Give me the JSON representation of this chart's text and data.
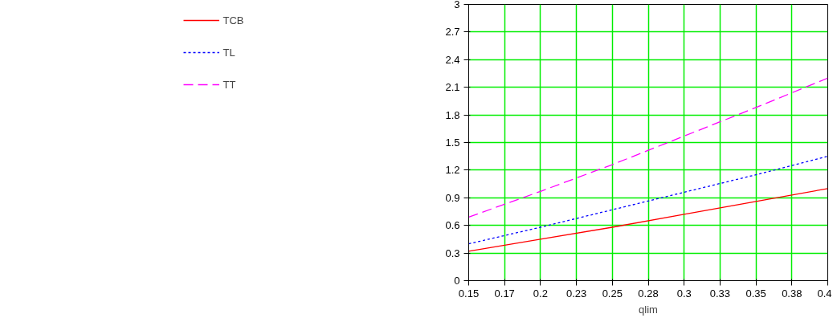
{
  "chart_data": {
    "type": "line",
    "xlabel": "qlim",
    "x": [
      0.15,
      0.2,
      0.25,
      0.3,
      0.35,
      0.4
    ],
    "series": [
      {
        "name": "TCB",
        "color": "#ff0000",
        "line_style": "solid",
        "values": [
          0.32,
          0.45,
          0.58,
          0.72,
          0.86,
          1.0
        ]
      },
      {
        "name": "TL",
        "color": "#0000ff",
        "line_style": "dotted",
        "values": [
          0.4,
          0.58,
          0.77,
          0.96,
          1.15,
          1.35
        ]
      },
      {
        "name": "TT",
        "color": "#ff00ff",
        "line_style": "dashed",
        "values": [
          0.69,
          0.97,
          1.26,
          1.57,
          1.88,
          2.2
        ]
      }
    ],
    "xlim": [
      0.15,
      0.4
    ],
    "xticks": [
      0.15,
      {
        "value": 0.175,
        "label": "0.17"
      },
      0.2,
      {
        "value": 0.225,
        "label": "0.23"
      },
      0.25,
      {
        "value": 0.275,
        "label": "0.28"
      },
      0.3,
      {
        "value": 0.325,
        "label": "0.33"
      },
      0.35,
      {
        "value": 0.375,
        "label": "0.38"
      },
      0.4
    ],
    "ylim": [
      0,
      3
    ],
    "yticks": [
      0,
      0.3,
      0.6,
      0.9,
      1.2,
      1.5,
      1.8,
      2.1,
      2.4,
      2.7,
      3
    ],
    "grid": true,
    "legend": "left",
    "marker": "none"
  }
}
